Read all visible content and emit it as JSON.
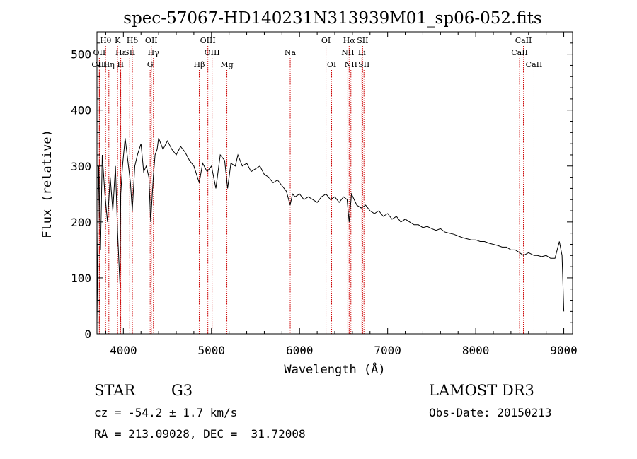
{
  "chart_data": {
    "type": "line",
    "title": "spec-57067-HD140231N313939M01_sp06-052.fits",
    "xlabel": "Wavelength (Å)",
    "ylabel": "Flux (relative)",
    "xlim": [
      3700,
      9100
    ],
    "ylim": [
      0,
      540
    ],
    "xticks": [
      4000,
      5000,
      6000,
      7000,
      8000,
      9000
    ],
    "yticks": [
      0,
      100,
      200,
      300,
      400,
      500
    ],
    "xtick_labels": [
      "4000",
      "5000",
      "6000",
      "7000",
      "8000",
      "9000"
    ],
    "ytick_labels": [
      "0",
      "100",
      "200",
      "300",
      "400",
      "500"
    ],
    "grid": false,
    "line_color": "#000000",
    "marker_color": "#cc0000",
    "spectrum": {
      "x": [
        3700,
        3720,
        3740,
        3760,
        3790,
        3820,
        3850,
        3880,
        3910,
        3935,
        3960,
        3970,
        3990,
        4020,
        4050,
        4080,
        4101,
        4130,
        4160,
        4200,
        4230,
        4260,
        4290,
        4310,
        4340,
        4360,
        4383,
        4400,
        4450,
        4500,
        4550,
        4600,
        4650,
        4700,
        4750,
        4800,
        4861,
        4900,
        4950,
        5000,
        5050,
        5100,
        5150,
        5183,
        5220,
        5270,
        5300,
        5350,
        5400,
        5450,
        5500,
        5550,
        5600,
        5650,
        5700,
        5750,
        5800,
        5850,
        5893,
        5920,
        5950,
        6000,
        6050,
        6100,
        6150,
        6200,
        6250,
        6300,
        6350,
        6400,
        6450,
        6500,
        6540,
        6563,
        6590,
        6620,
        6650,
        6700,
        6750,
        6800,
        6850,
        6900,
        6950,
        7000,
        7050,
        7100,
        7150,
        7200,
        7250,
        7300,
        7350,
        7400,
        7450,
        7500,
        7550,
        7600,
        7650,
        7700,
        7750,
        7800,
        7850,
        7900,
        7950,
        8000,
        8050,
        8100,
        8150,
        8200,
        8250,
        8300,
        8350,
        8400,
        8450,
        8498,
        8542,
        8600,
        8662,
        8700,
        8750,
        8800,
        8850,
        8900,
        8950,
        8980,
        9000
      ],
      "y": [
        20,
        300,
        150,
        320,
        250,
        200,
        280,
        220,
        300,
        180,
        90,
        250,
        300,
        350,
        310,
        270,
        220,
        300,
        320,
        340,
        290,
        300,
        280,
        200,
        280,
        320,
        330,
        350,
        330,
        345,
        330,
        320,
        335,
        325,
        310,
        300,
        270,
        305,
        290,
        300,
        260,
        320,
        310,
        260,
        305,
        300,
        320,
        300,
        305,
        290,
        295,
        300,
        285,
        280,
        270,
        275,
        265,
        255,
        230,
        250,
        245,
        250,
        240,
        245,
        240,
        235,
        245,
        250,
        240,
        245,
        235,
        245,
        240,
        200,
        250,
        240,
        230,
        225,
        230,
        220,
        215,
        220,
        210,
        215,
        205,
        210,
        200,
        205,
        200,
        195,
        195,
        190,
        192,
        188,
        185,
        188,
        182,
        180,
        178,
        175,
        172,
        170,
        168,
        168,
        165,
        165,
        162,
        160,
        158,
        155,
        155,
        150,
        150,
        145,
        140,
        145,
        140,
        140,
        138,
        140,
        135,
        135,
        165,
        140,
        40
      ]
    },
    "lines": [
      {
        "label": "Hθ",
        "wl": 3798,
        "row": 0
      },
      {
        "label": "OII",
        "wl": 3727,
        "row": 1
      },
      {
        "label": "OIII",
        "wl": 3727,
        "row": 2
      },
      {
        "label": "Hε",
        "wl": 3970,
        "row": 1
      },
      {
        "label": "Hη",
        "wl": 3835,
        "row": 2
      },
      {
        "label": "K",
        "wl": 3934,
        "row": 0
      },
      {
        "label": "H",
        "wl": 3968,
        "row": 2
      },
      {
        "label": "SII",
        "wl": 4072,
        "row": 1
      },
      {
        "label": "Hδ",
        "wl": 4102,
        "row": 0
      },
      {
        "label": "OII",
        "wl": 4317,
        "row": 0
      },
      {
        "label": "Hγ",
        "wl": 4341,
        "row": 1
      },
      {
        "label": "G",
        "wl": 4304,
        "row": 2
      },
      {
        "label": "Hβ",
        "wl": 4861,
        "row": 2
      },
      {
        "label": "OIII",
        "wl": 4959,
        "row": 0
      },
      {
        "label": "OIII",
        "wl": 5007,
        "row": 1
      },
      {
        "label": "Mg",
        "wl": 5175,
        "row": 2
      },
      {
        "label": "Na",
        "wl": 5894,
        "row": 1
      },
      {
        "label": "OI",
        "wl": 6300,
        "row": 0
      },
      {
        "label": "OI",
        "wl": 6364,
        "row": 2
      },
      {
        "label": "Hα",
        "wl": 6563,
        "row": 0
      },
      {
        "label": "NII",
        "wl": 6548,
        "row": 1
      },
      {
        "label": "NII",
        "wl": 6583,
        "row": 2
      },
      {
        "label": "SII",
        "wl": 6716,
        "row": 0
      },
      {
        "label": "Li",
        "wl": 6708,
        "row": 1
      },
      {
        "label": "SII",
        "wl": 6731,
        "row": 2
      },
      {
        "label": "CaII",
        "wl": 8542,
        "row": 0
      },
      {
        "label": "CaII",
        "wl": 8498,
        "row": 1
      },
      {
        "label": "CaII",
        "wl": 8662,
        "row": 2
      }
    ]
  },
  "info": {
    "object_class": "STAR",
    "subclass": "G3",
    "survey": "LAMOST DR3",
    "cz": "cz = -54.2 ± 1.7 km/s",
    "obs_date": "Obs-Date: 20150213",
    "coords": "RA = 213.09028, DEC =  31.72008"
  }
}
